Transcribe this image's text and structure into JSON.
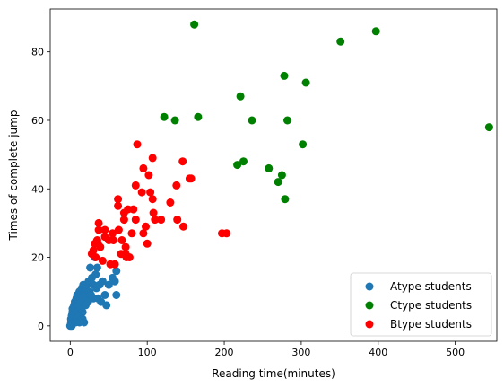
{
  "chart_data": {
    "type": "scatter",
    "title": "",
    "xlabel": "Reading time(minutes)",
    "ylabel": "Times of complete jump",
    "xlim": [
      -26,
      554
    ],
    "ylim": [
      -4.5,
      92.5
    ],
    "xticks": [
      0,
      100,
      200,
      300,
      400,
      500
    ],
    "yticks": [
      0,
      20,
      40,
      60,
      80
    ],
    "grid": false,
    "legend_position": "lower-right",
    "series": [
      {
        "name": "Atype students",
        "color": "#1f77b4",
        "points": [
          [
            0,
            0
          ],
          [
            1,
            1
          ],
          [
            1,
            2
          ],
          [
            2,
            3
          ],
          [
            3,
            4
          ],
          [
            3,
            5
          ],
          [
            4,
            2
          ],
          [
            5,
            3
          ],
          [
            5,
            6
          ],
          [
            6,
            4
          ],
          [
            6,
            7
          ],
          [
            7,
            5
          ],
          [
            8,
            8
          ],
          [
            8,
            2
          ],
          [
            9,
            6
          ],
          [
            9,
            9
          ],
          [
            10,
            4
          ],
          [
            10,
            7
          ],
          [
            11,
            3
          ],
          [
            12,
            10
          ],
          [
            12,
            6
          ],
          [
            13,
            8
          ],
          [
            14,
            5
          ],
          [
            14,
            9
          ],
          [
            15,
            11
          ],
          [
            15,
            7
          ],
          [
            16,
            4
          ],
          [
            17,
            9
          ],
          [
            17,
            12
          ],
          [
            18,
            1
          ],
          [
            18,
            8
          ],
          [
            19,
            10
          ],
          [
            20,
            6
          ],
          [
            20,
            11
          ],
          [
            21,
            12
          ],
          [
            22,
            9
          ],
          [
            23,
            7
          ],
          [
            24,
            13
          ],
          [
            25,
            10
          ],
          [
            26,
            17
          ],
          [
            27,
            9
          ],
          [
            28,
            14
          ],
          [
            30,
            8
          ],
          [
            30,
            12
          ],
          [
            32,
            20
          ],
          [
            33,
            15
          ],
          [
            34,
            11
          ],
          [
            35,
            17
          ],
          [
            36,
            8
          ],
          [
            38,
            12
          ],
          [
            40,
            7
          ],
          [
            42,
            13
          ],
          [
            45,
            9
          ],
          [
            47,
            6
          ],
          [
            50,
            12
          ],
          [
            55,
            14
          ],
          [
            58,
            13
          ],
          [
            60,
            9
          ],
          [
            60,
            16
          ],
          [
            5,
            1
          ],
          [
            2,
            0
          ],
          [
            7,
            1
          ],
          [
            12,
            1
          ],
          [
            16,
            2
          ]
        ]
      },
      {
        "name": "Ctype students",
        "color": "#008000",
        "points": [
          [
            161,
            88
          ],
          [
            221,
            67
          ],
          [
            278,
            73
          ],
          [
            306,
            71
          ],
          [
            122,
            61
          ],
          [
            136,
            60
          ],
          [
            166,
            61
          ],
          [
            236,
            60
          ],
          [
            282,
            60
          ],
          [
            351,
            83
          ],
          [
            397,
            86
          ],
          [
            544,
            58
          ],
          [
            302,
            53
          ],
          [
            217,
            47
          ],
          [
            225,
            48
          ],
          [
            258,
            46
          ],
          [
            275,
            44
          ],
          [
            270,
            42
          ],
          [
            279,
            37
          ]
        ]
      },
      {
        "name": "Btype students",
        "color": "#ff0000",
        "points": [
          [
            87,
            53
          ],
          [
            107,
            49
          ],
          [
            146,
            48
          ],
          [
            95,
            46
          ],
          [
            102,
            44
          ],
          [
            157,
            43
          ],
          [
            138,
            41
          ],
          [
            85,
            41
          ],
          [
            93,
            39
          ],
          [
            104,
            39
          ],
          [
            107,
            37
          ],
          [
            62,
            37
          ],
          [
            62,
            35
          ],
          [
            75,
            34
          ],
          [
            82,
            34
          ],
          [
            70,
            33
          ],
          [
            108,
            33
          ],
          [
            130,
            36
          ],
          [
            155,
            43
          ],
          [
            118,
            31
          ],
          [
            110,
            31
          ],
          [
            139,
            31
          ],
          [
            147,
            29
          ],
          [
            98,
            29
          ],
          [
            70,
            31
          ],
          [
            85,
            31
          ],
          [
            37,
            30
          ],
          [
            37,
            28
          ],
          [
            45,
            28
          ],
          [
            55,
            27
          ],
          [
            63,
            28
          ],
          [
            80,
            27
          ],
          [
            95,
            27
          ],
          [
            35,
            25
          ],
          [
            45,
            26
          ],
          [
            50,
            25
          ],
          [
            56,
            25
          ],
          [
            67,
            25
          ],
          [
            72,
            23
          ],
          [
            36,
            24
          ],
          [
            32,
            24
          ],
          [
            39,
            23
          ],
          [
            30,
            22
          ],
          [
            28,
            21
          ],
          [
            33,
            20
          ],
          [
            42,
            19
          ],
          [
            52,
            18
          ],
          [
            58,
            18
          ],
          [
            66,
            21
          ],
          [
            73,
            20
          ],
          [
            100,
            24
          ],
          [
            197,
            27
          ],
          [
            203,
            27
          ],
          [
            72,
            21
          ],
          [
            77,
            20
          ]
        ]
      }
    ]
  }
}
